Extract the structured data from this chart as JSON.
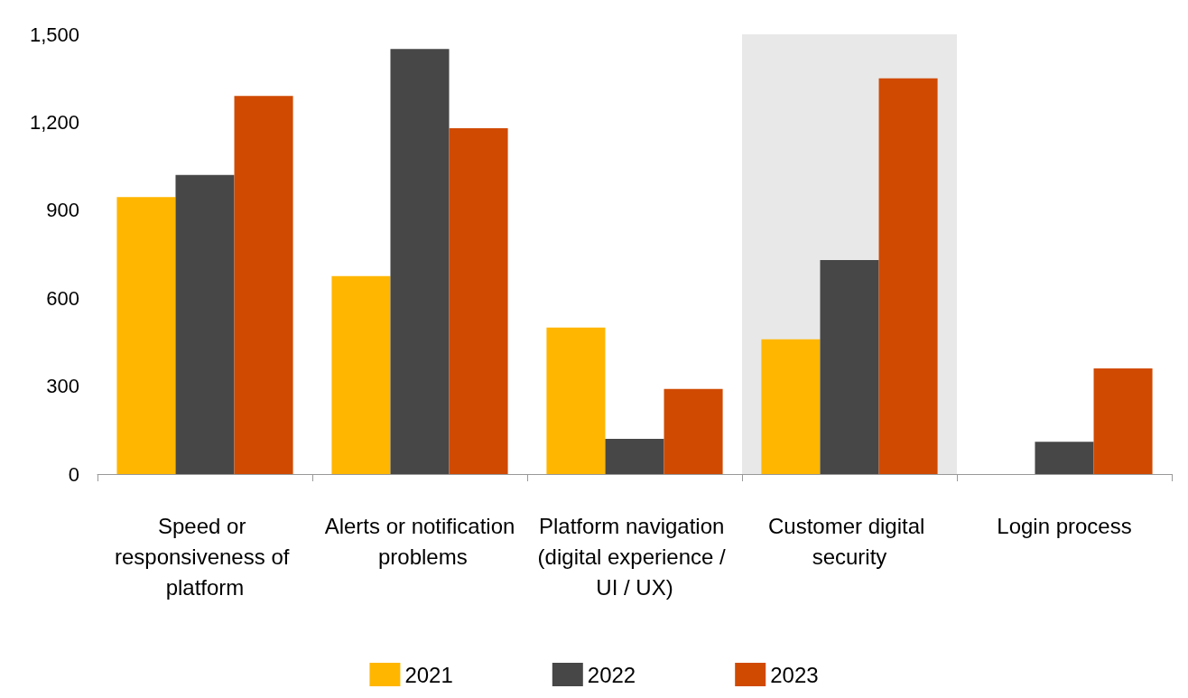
{
  "chart_data": {
    "type": "bar",
    "categories": [
      "Speed or responsiveness of platform",
      "Alerts or notification problems",
      "Platform navigation (digital experience / UI / UX)",
      "Customer digital security",
      "Login process"
    ],
    "series": [
      {
        "name": "2021",
        "color": "#ffb600",
        "values": [
          945,
          675,
          500,
          460,
          null
        ]
      },
      {
        "name": "2022",
        "color": "#474747",
        "values": [
          1020,
          1450,
          120,
          730,
          110
        ]
      },
      {
        "name": "2023",
        "color": "#d04a02",
        "values": [
          1290,
          1180,
          290,
          1350,
          360
        ]
      }
    ],
    "ylim": [
      0,
      1500
    ],
    "yticks": [
      0,
      300,
      600,
      900,
      {
        "value": 1200,
        "label": "1,200"
      },
      {
        "value": 1500,
        "label": "1,500"
      }
    ],
    "bands": [
      {
        "axis": "x",
        "from": "Customer digital security",
        "to": "Customer digital security",
        "color": "#e8e8e8"
      }
    ],
    "grid": false,
    "legend": "bottom"
  }
}
